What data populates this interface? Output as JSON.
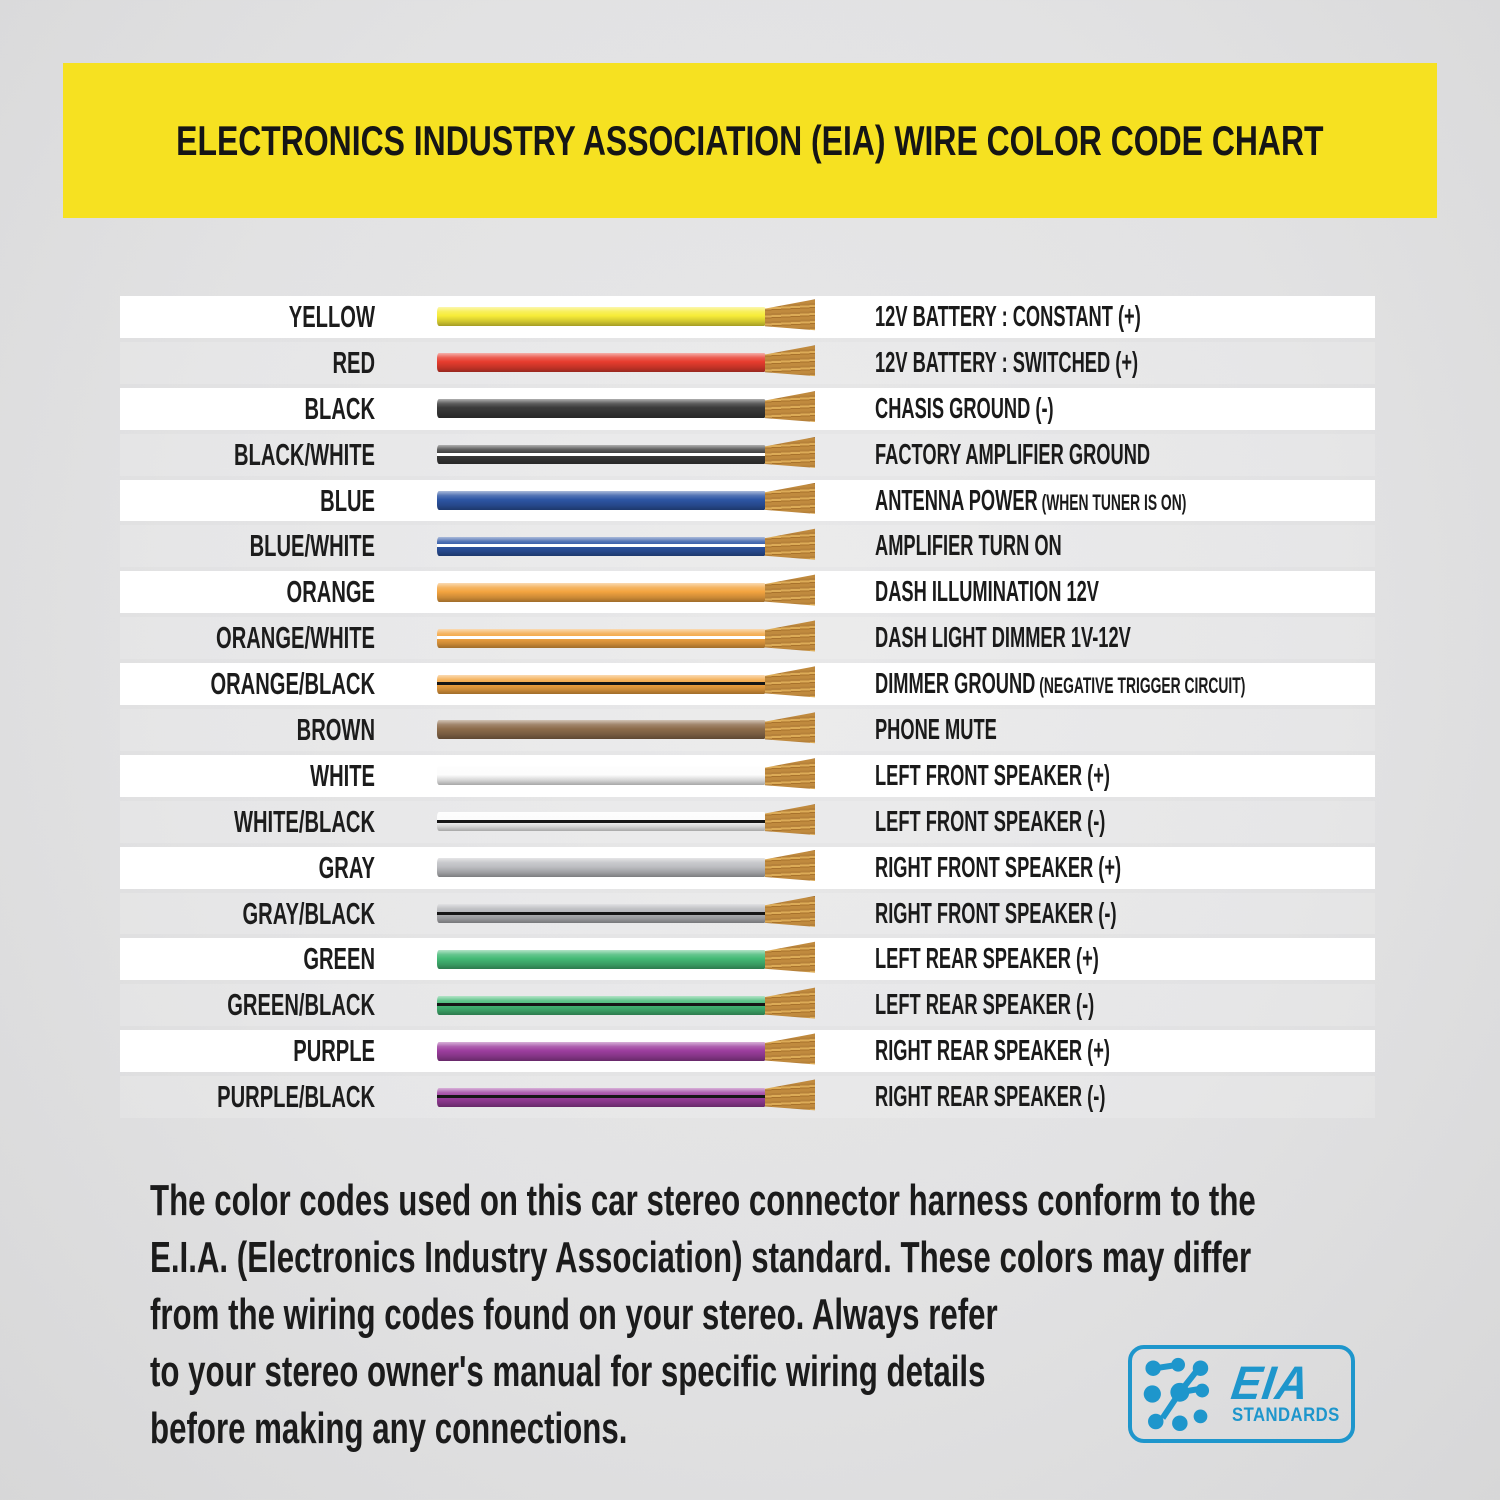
{
  "header": {
    "title": "ELECTRONICS INDUSTRY ASSOCIATION (EIA) WIRE COLOR CODE CHART",
    "bg_color": "#f6e121",
    "text_color": "#151515"
  },
  "table": {
    "copper_color": "#c08a3e",
    "rows": [
      {
        "label": "YELLOW",
        "wire_color": "#f7ec38",
        "stripe_color": null,
        "function": "12V BATTERY : CONSTANT (+)",
        "function_note": null
      },
      {
        "label": "RED",
        "wire_color": "#e73c2e",
        "stripe_color": null,
        "function": "12V BATTERY : SWITCHED (+)",
        "function_note": null
      },
      {
        "label": "BLACK",
        "wire_color": "#3a3a3a",
        "stripe_color": null,
        "function": "CHASIS GROUND (-)",
        "function_note": null
      },
      {
        "label": "BLACK/WHITE",
        "wire_color": "#3a3a3a",
        "stripe_color": "#ffffff",
        "function": "FACTORY AMPLIFIER GROUND",
        "function_note": null
      },
      {
        "label": "BLUE",
        "wire_color": "#2d55a4",
        "stripe_color": null,
        "function": "ANTENNA POWER",
        "function_note": "(WHEN TUNER IS ON)"
      },
      {
        "label": "BLUE/WHITE",
        "wire_color": "#2d55a4",
        "stripe_color": "#ffffff",
        "function": "AMPLIFIER TURN ON",
        "function_note": null
      },
      {
        "label": "ORANGE",
        "wire_color": "#f3a440",
        "stripe_color": null,
        "function": "DASH ILLUMINATION 12V",
        "function_note": null
      },
      {
        "label": "ORANGE/WHITE",
        "wire_color": "#f3a440",
        "stripe_color": "#ffffff",
        "function": "DASH LIGHT DIMMER 1V-12V",
        "function_note": null
      },
      {
        "label": "ORANGE/BLACK",
        "wire_color": "#f3a440",
        "stripe_color": "#161616",
        "function": "DIMMER GROUND",
        "function_note": "(NEGATIVE TRIGGER CIRCUIT)"
      },
      {
        "label": "BROWN",
        "wire_color": "#8d6c4c",
        "stripe_color": null,
        "function": "PHONE MUTE",
        "function_note": null
      },
      {
        "label": "WHITE",
        "wire_color": "#fcfcfc",
        "stripe_color": null,
        "function": "LEFT FRONT SPEAKER (+)",
        "function_note": null
      },
      {
        "label": "WHITE/BLACK",
        "wire_color": "#fcfcfc",
        "stripe_color": "#161616",
        "function": "LEFT FRONT SPEAKER (-)",
        "function_note": null
      },
      {
        "label": "GRAY",
        "wire_color": "#bdbec2",
        "stripe_color": null,
        "function": "RIGHT FRONT SPEAKER (+)",
        "function_note": null
      },
      {
        "label": "GRAY/BLACK",
        "wire_color": "#b4b5b9",
        "stripe_color": "#161616",
        "function": "RIGHT FRONT SPEAKER (-)",
        "function_note": null
      },
      {
        "label": "GREEN",
        "wire_color": "#43b975",
        "stripe_color": null,
        "function": "LEFT REAR SPEAKER (+)",
        "function_note": null
      },
      {
        "label": "GREEN/BLACK",
        "wire_color": "#43b975",
        "stripe_color": "#161616",
        "function": "LEFT REAR SPEAKER (-)",
        "function_note": null
      },
      {
        "label": "PURPLE",
        "wire_color": "#9c3e9e",
        "stripe_color": null,
        "function": "RIGHT REAR SPEAKER (+)",
        "function_note": null
      },
      {
        "label": "PURPLE/BLACK",
        "wire_color": "#9c3e9e",
        "stripe_color": "#161616",
        "function": "RIGHT REAR SPEAKER (-)",
        "function_note": null
      }
    ]
  },
  "footer": {
    "lines": [
      "The color codes used on this car stereo connector harness conform to the",
      "E.I.A. (Electronics Industry Association) standard. These colors may differ",
      "from the wiring codes found on your stereo. Always refer",
      "to your stereo owner's manual for specific wiring details",
      "before making any connections."
    ]
  },
  "logo": {
    "text_main": "EIA",
    "text_sub": "STANDARDS",
    "color": "#1e96cc"
  }
}
